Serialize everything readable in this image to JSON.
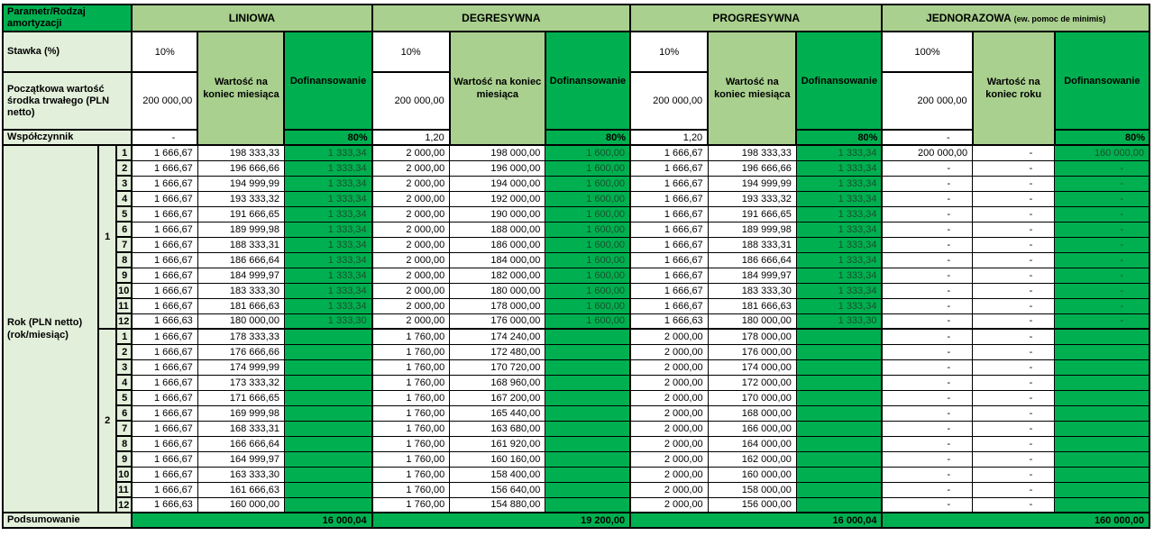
{
  "colors": {
    "accent_green": "#00B050",
    "light_green": "#A9D08E",
    "pale_green": "#E2EFDA",
    "dof_text_green": "#17512B"
  },
  "corner": {
    "line1": "Parametr/Rodzaj",
    "line2": "amortyzacji"
  },
  "row_labels": {
    "stawka": "Stawka (%)",
    "poczatkowa": "Początkowa wartość środka trwałego (PLN netto)",
    "wspolczynnik": "Współczynnik",
    "rok_line1": "Rok (PLN netto)",
    "rok_line2": "(rok/miesiąc)",
    "podsumowanie": "Podsumowanie"
  },
  "sections": [
    {
      "key": "liniowa",
      "name": "LINIOWA",
      "name_suffix": "",
      "stawka": "10%",
      "initial": "200 000,00",
      "wspolczynnik": "-",
      "value_header": "Wartość na koniec miesiąca",
      "dof_header": "Dofinansowanie",
      "dof_rate": "80%",
      "total": "16 000,04"
    },
    {
      "key": "degresywna",
      "name": "DEGRESYWNA",
      "name_suffix": "",
      "stawka": "10%",
      "initial": "200 000,00",
      "wspolczynnik": "1,20",
      "value_header": "Wartość na koniec miesiąca",
      "dof_header": "Dofinansowanie",
      "dof_rate": "80%",
      "total": "19 200,00"
    },
    {
      "key": "progresywna",
      "name": "PROGRESYWNA",
      "name_suffix": "",
      "stawka": "10%",
      "initial": "200 000,00",
      "wspolczynnik": "1,20",
      "value_header": "Wartość na koniec miesiąca",
      "dof_header": "Dofinansowanie",
      "dof_rate": "80%",
      "total": "16 000,04"
    },
    {
      "key": "jednorazowa",
      "name": "JEDNORAZOWA",
      "name_suffix": "(ew. pomoc de minimis)",
      "stawka": "100%",
      "initial": "200 000,00",
      "wspolczynnik": "-",
      "value_header": "Wartość na koniec roku",
      "dof_header": "Dofinansowanie",
      "dof_rate": "80%",
      "total": "160 000,00"
    }
  ],
  "rows": [
    {
      "year": "1",
      "month": "1",
      "cells": [
        [
          "1 666,67",
          "198 333,33",
          "1 333,34"
        ],
        [
          "2 000,00",
          "198 000,00",
          "1 600,00"
        ],
        [
          "1 666,67",
          "198 333,33",
          "1 333,34"
        ],
        [
          "200 000,00",
          "-",
          "160 000,00"
        ]
      ]
    },
    {
      "year": "1",
      "month": "2",
      "cells": [
        [
          "1 666,67",
          "196 666,66",
          "1 333,34"
        ],
        [
          "2 000,00",
          "196 000,00",
          "1 600,00"
        ],
        [
          "1 666,67",
          "196 666,66",
          "1 333,34"
        ],
        [
          "-",
          "-",
          "-"
        ]
      ]
    },
    {
      "year": "1",
      "month": "3",
      "cells": [
        [
          "1 666,67",
          "194 999,99",
          "1 333,34"
        ],
        [
          "2 000,00",
          "194 000,00",
          "1 600,00"
        ],
        [
          "1 666,67",
          "194 999,99",
          "1 333,34"
        ],
        [
          "-",
          "-",
          "-"
        ]
      ]
    },
    {
      "year": "1",
      "month": "4",
      "cells": [
        [
          "1 666,67",
          "193 333,32",
          "1 333,34"
        ],
        [
          "2 000,00",
          "192 000,00",
          "1 600,00"
        ],
        [
          "1 666,67",
          "193 333,32",
          "1 333,34"
        ],
        [
          "-",
          "-",
          "-"
        ]
      ]
    },
    {
      "year": "1",
      "month": "5",
      "cells": [
        [
          "1 666,67",
          "191 666,65",
          "1 333,34"
        ],
        [
          "2 000,00",
          "190 000,00",
          "1 600,00"
        ],
        [
          "1 666,67",
          "191 666,65",
          "1 333,34"
        ],
        [
          "-",
          "-",
          "-"
        ]
      ]
    },
    {
      "year": "1",
      "month": "6",
      "cells": [
        [
          "1 666,67",
          "189 999,98",
          "1 333,34"
        ],
        [
          "2 000,00",
          "188 000,00",
          "1 600,00"
        ],
        [
          "1 666,67",
          "189 999,98",
          "1 333,34"
        ],
        [
          "-",
          "-",
          "-"
        ]
      ]
    },
    {
      "year": "1",
      "month": "7",
      "cells": [
        [
          "1 666,67",
          "188 333,31",
          "1 333,34"
        ],
        [
          "2 000,00",
          "186 000,00",
          "1 600,00"
        ],
        [
          "1 666,67",
          "188 333,31",
          "1 333,34"
        ],
        [
          "-",
          "-",
          "-"
        ]
      ]
    },
    {
      "year": "1",
      "month": "8",
      "cells": [
        [
          "1 666,67",
          "186 666,64",
          "1 333,34"
        ],
        [
          "2 000,00",
          "184 000,00",
          "1 600,00"
        ],
        [
          "1 666,67",
          "186 666,64",
          "1 333,34"
        ],
        [
          "-",
          "-",
          "-"
        ]
      ]
    },
    {
      "year": "1",
      "month": "9",
      "cells": [
        [
          "1 666,67",
          "184 999,97",
          "1 333,34"
        ],
        [
          "2 000,00",
          "182 000,00",
          "1 600,00"
        ],
        [
          "1 666,67",
          "184 999,97",
          "1 333,34"
        ],
        [
          "-",
          "-",
          "-"
        ]
      ]
    },
    {
      "year": "1",
      "month": "10",
      "cells": [
        [
          "1 666,67",
          "183 333,30",
          "1 333,34"
        ],
        [
          "2 000,00",
          "180 000,00",
          "1 600,00"
        ],
        [
          "1 666,67",
          "183 333,30",
          "1 333,34"
        ],
        [
          "-",
          "-",
          "-"
        ]
      ]
    },
    {
      "year": "1",
      "month": "11",
      "cells": [
        [
          "1 666,67",
          "181 666,63",
          "1 333,34"
        ],
        [
          "2 000,00",
          "178 000,00",
          "1 600,00"
        ],
        [
          "1 666,67",
          "181 666,63",
          "1 333,34"
        ],
        [
          "-",
          "-",
          "-"
        ]
      ]
    },
    {
      "year": "1",
      "month": "12",
      "cells": [
        [
          "1 666,63",
          "180 000,00",
          "1 333,30"
        ],
        [
          "2 000,00",
          "176 000,00",
          "1 600,00"
        ],
        [
          "1 666,63",
          "180 000,00",
          "1 333,30"
        ],
        [
          "-",
          "-",
          "-"
        ]
      ]
    },
    {
      "year": "2",
      "month": "1",
      "cells": [
        [
          "1 666,67",
          "178 333,33",
          ""
        ],
        [
          "1 760,00",
          "174 240,00",
          ""
        ],
        [
          "2 000,00",
          "178 000,00",
          ""
        ],
        [
          "-",
          "-",
          ""
        ]
      ]
    },
    {
      "year": "2",
      "month": "2",
      "cells": [
        [
          "1 666,67",
          "176 666,66",
          ""
        ],
        [
          "1 760,00",
          "172 480,00",
          ""
        ],
        [
          "2 000,00",
          "176 000,00",
          ""
        ],
        [
          "-",
          "-",
          ""
        ]
      ]
    },
    {
      "year": "2",
      "month": "3",
      "cells": [
        [
          "1 666,67",
          "174 999,99",
          ""
        ],
        [
          "1 760,00",
          "170 720,00",
          ""
        ],
        [
          "2 000,00",
          "174 000,00",
          ""
        ],
        [
          "-",
          "-",
          ""
        ]
      ]
    },
    {
      "year": "2",
      "month": "4",
      "cells": [
        [
          "1 666,67",
          "173 333,32",
          ""
        ],
        [
          "1 760,00",
          "168 960,00",
          ""
        ],
        [
          "2 000,00",
          "172 000,00",
          ""
        ],
        [
          "-",
          "-",
          ""
        ]
      ]
    },
    {
      "year": "2",
      "month": "5",
      "cells": [
        [
          "1 666,67",
          "171 666,65",
          ""
        ],
        [
          "1 760,00",
          "167 200,00",
          ""
        ],
        [
          "2 000,00",
          "170 000,00",
          ""
        ],
        [
          "-",
          "-",
          ""
        ]
      ]
    },
    {
      "year": "2",
      "month": "6",
      "cells": [
        [
          "1 666,67",
          "169 999,98",
          ""
        ],
        [
          "1 760,00",
          "165 440,00",
          ""
        ],
        [
          "2 000,00",
          "168 000,00",
          ""
        ],
        [
          "-",
          "-",
          ""
        ]
      ]
    },
    {
      "year": "2",
      "month": "7",
      "cells": [
        [
          "1 666,67",
          "168 333,31",
          ""
        ],
        [
          "1 760,00",
          "163 680,00",
          ""
        ],
        [
          "2 000,00",
          "166 000,00",
          ""
        ],
        [
          "-",
          "-",
          ""
        ]
      ]
    },
    {
      "year": "2",
      "month": "8",
      "cells": [
        [
          "1 666,67",
          "166 666,64",
          ""
        ],
        [
          "1 760,00",
          "161 920,00",
          ""
        ],
        [
          "2 000,00",
          "164 000,00",
          ""
        ],
        [
          "-",
          "-",
          ""
        ]
      ]
    },
    {
      "year": "2",
      "month": "9",
      "cells": [
        [
          "1 666,67",
          "164 999,97",
          ""
        ],
        [
          "1 760,00",
          "160 160,00",
          ""
        ],
        [
          "2 000,00",
          "162 000,00",
          ""
        ],
        [
          "-",
          "-",
          ""
        ]
      ]
    },
    {
      "year": "2",
      "month": "10",
      "cells": [
        [
          "1 666,67",
          "163 333,30",
          ""
        ],
        [
          "1 760,00",
          "158 400,00",
          ""
        ],
        [
          "2 000,00",
          "160 000,00",
          ""
        ],
        [
          "-",
          "-",
          ""
        ]
      ]
    },
    {
      "year": "2",
      "month": "11",
      "cells": [
        [
          "1 666,67",
          "161 666,63",
          ""
        ],
        [
          "1 760,00",
          "156 640,00",
          ""
        ],
        [
          "2 000,00",
          "158 000,00",
          ""
        ],
        [
          "-",
          "-",
          ""
        ]
      ]
    },
    {
      "year": "2",
      "month": "12",
      "cells": [
        [
          "1 666,63",
          "160 000,00",
          ""
        ],
        [
          "1 760,00",
          "154 880,00",
          ""
        ],
        [
          "2 000,00",
          "156 000,00",
          ""
        ],
        [
          "-",
          "-",
          ""
        ]
      ]
    }
  ]
}
